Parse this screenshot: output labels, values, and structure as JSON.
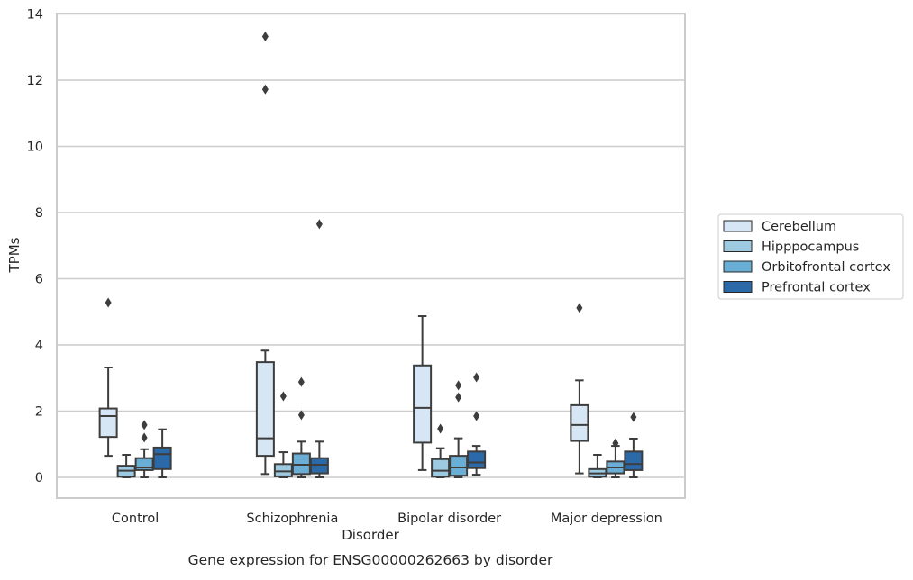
{
  "chart_data": {
    "type": "box",
    "xlabel": "Disorder",
    "ylabel": "TPMs",
    "caption": "Gene expression for ENSG00000262663 by disorder",
    "ylim": [
      -0.6,
      14
    ],
    "yticks": [
      0,
      2,
      4,
      6,
      8,
      10,
      12,
      14
    ],
    "grid": "horizontal",
    "legend_position": "right",
    "categories": [
      "Control",
      "Schizophrenia",
      "Bipolar disorder",
      "Major depression"
    ],
    "series": [
      {
        "name": "Cerebellum",
        "color": "#d6e6f4",
        "boxes": [
          {
            "whislo": 0.65,
            "q1": 1.22,
            "med": 1.85,
            "q3": 2.08,
            "whishi": 3.32,
            "fliers": [
              5.28
            ]
          },
          {
            "whislo": 0.1,
            "q1": 0.65,
            "med": 1.18,
            "q3": 3.48,
            "whishi": 3.83,
            "fliers": [
              11.72,
              13.32
            ]
          },
          {
            "whislo": 0.22,
            "q1": 1.05,
            "med": 2.1,
            "q3": 3.38,
            "whishi": 4.87,
            "fliers": []
          },
          {
            "whislo": 0.12,
            "q1": 1.1,
            "med": 1.58,
            "q3": 2.18,
            "whishi": 2.93,
            "fliers": [
              5.12
            ]
          }
        ]
      },
      {
        "name": "Hipppocampus",
        "color": "#9ecae1",
        "boxes": [
          {
            "whislo": 0.0,
            "q1": 0.02,
            "med": 0.2,
            "q3": 0.35,
            "whishi": 0.68,
            "fliers": []
          },
          {
            "whislo": 0.0,
            "q1": 0.03,
            "med": 0.18,
            "q3": 0.4,
            "whishi": 0.76,
            "fliers": [
              2.45
            ]
          },
          {
            "whislo": 0.0,
            "q1": 0.02,
            "med": 0.2,
            "q3": 0.55,
            "whishi": 0.88,
            "fliers": [
              1.47
            ]
          },
          {
            "whislo": 0.0,
            "q1": 0.02,
            "med": 0.12,
            "q3": 0.25,
            "whishi": 0.68,
            "fliers": []
          }
        ]
      },
      {
        "name": "Orbitofrontal cortex",
        "color": "#6aaed6",
        "boxes": [
          {
            "whislo": 0.0,
            "q1": 0.22,
            "med": 0.3,
            "q3": 0.58,
            "whishi": 0.85,
            "fliers": [
              1.2,
              1.58
            ]
          },
          {
            "whislo": 0.0,
            "q1": 0.1,
            "med": 0.38,
            "q3": 0.72,
            "whishi": 1.08,
            "fliers": [
              1.88,
              2.88
            ]
          },
          {
            "whislo": 0.0,
            "q1": 0.05,
            "med": 0.3,
            "q3": 0.65,
            "whishi": 1.18,
            "fliers": [
              2.42,
              2.78
            ]
          },
          {
            "whislo": 0.0,
            "q1": 0.12,
            "med": 0.3,
            "q3": 0.48,
            "whishi": 0.95,
            "fliers": [
              1.03
            ]
          }
        ]
      },
      {
        "name": "Prefrontal cortex",
        "color": "#2c69a9",
        "boxes": [
          {
            "whislo": 0.0,
            "q1": 0.25,
            "med": 0.7,
            "q3": 0.9,
            "whishi": 1.45,
            "fliers": []
          },
          {
            "whislo": 0.0,
            "q1": 0.12,
            "med": 0.38,
            "q3": 0.58,
            "whishi": 1.08,
            "fliers": [
              7.65
            ]
          },
          {
            "whislo": 0.08,
            "q1": 0.28,
            "med": 0.45,
            "q3": 0.78,
            "whishi": 0.95,
            "fliers": [
              1.85,
              3.02
            ]
          },
          {
            "whislo": 0.0,
            "q1": 0.22,
            "med": 0.4,
            "q3": 0.78,
            "whishi": 1.17,
            "fliers": [
              1.82
            ]
          }
        ]
      }
    ]
  }
}
